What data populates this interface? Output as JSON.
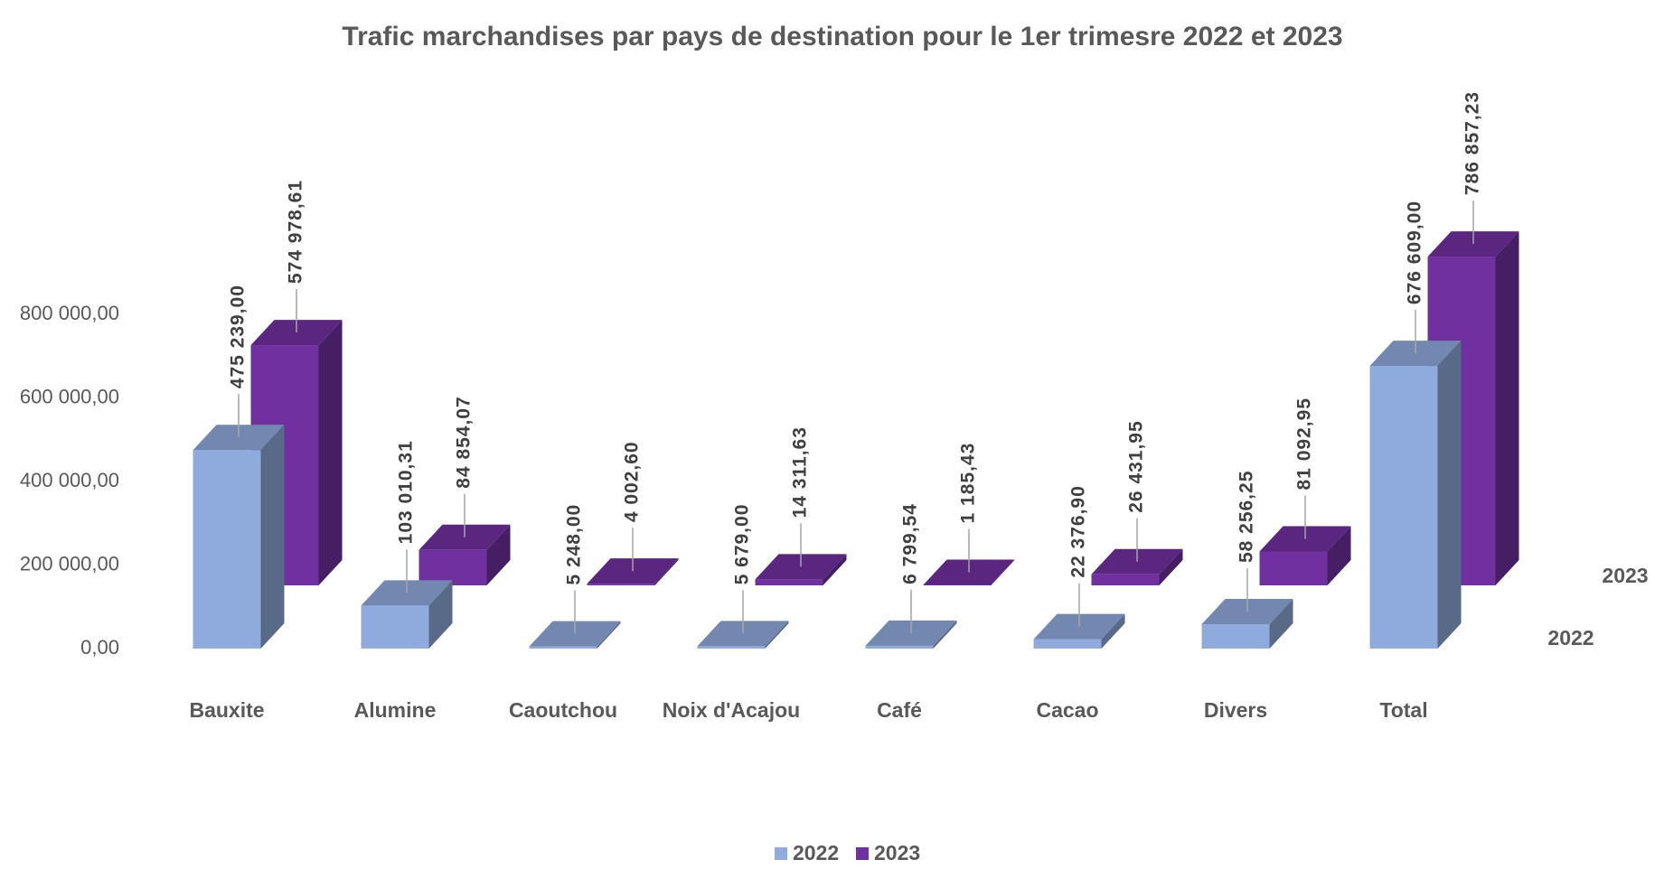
{
  "chart_data": {
    "type": "bar3d",
    "title": "Trafic marchandises  par pays de destination pour le 1er trimesre 2022 et 2023",
    "categories": [
      "Bauxite",
      "Alumine",
      "Caoutchou",
      "Noix d'Acajou",
      "Café",
      "Cacao",
      "Divers",
      "Total"
    ],
    "series": [
      {
        "name": "2022",
        "color": "#8faadc",
        "values": [
          475239.0,
          103010.31,
          5248.0,
          5679.0,
          6799.54,
          22376.9,
          58256.25,
          676609.0
        ],
        "value_labels": [
          "475 239,00",
          "103 010,31",
          "5 248,00",
          "5 679,00",
          "6 799,54",
          "22 376,90",
          "58 256,25",
          "676 609,00"
        ]
      },
      {
        "name": "2023",
        "color": "#7030a0",
        "values": [
          574978.61,
          84854.07,
          4002.6,
          14311.63,
          1185.43,
          26431.95,
          81092.95,
          786857.23
        ],
        "value_labels": [
          "574 978,61",
          "84 854,07",
          "4 002,60",
          "14 311,63",
          "1 185,43",
          "26 431,95",
          "81 092,95",
          "786 857,23"
        ]
      }
    ],
    "ylim": [
      0,
      800000
    ],
    "yticks": [
      {
        "value": 0,
        "label": "0,00"
      },
      {
        "value": 200000,
        "label": "200 000,00"
      },
      {
        "value": 400000,
        "label": "400 000,00"
      },
      {
        "value": 600000,
        "label": "600 000,00"
      },
      {
        "value": 800000,
        "label": "800 000,00"
      }
    ],
    "legend": "bottom"
  }
}
